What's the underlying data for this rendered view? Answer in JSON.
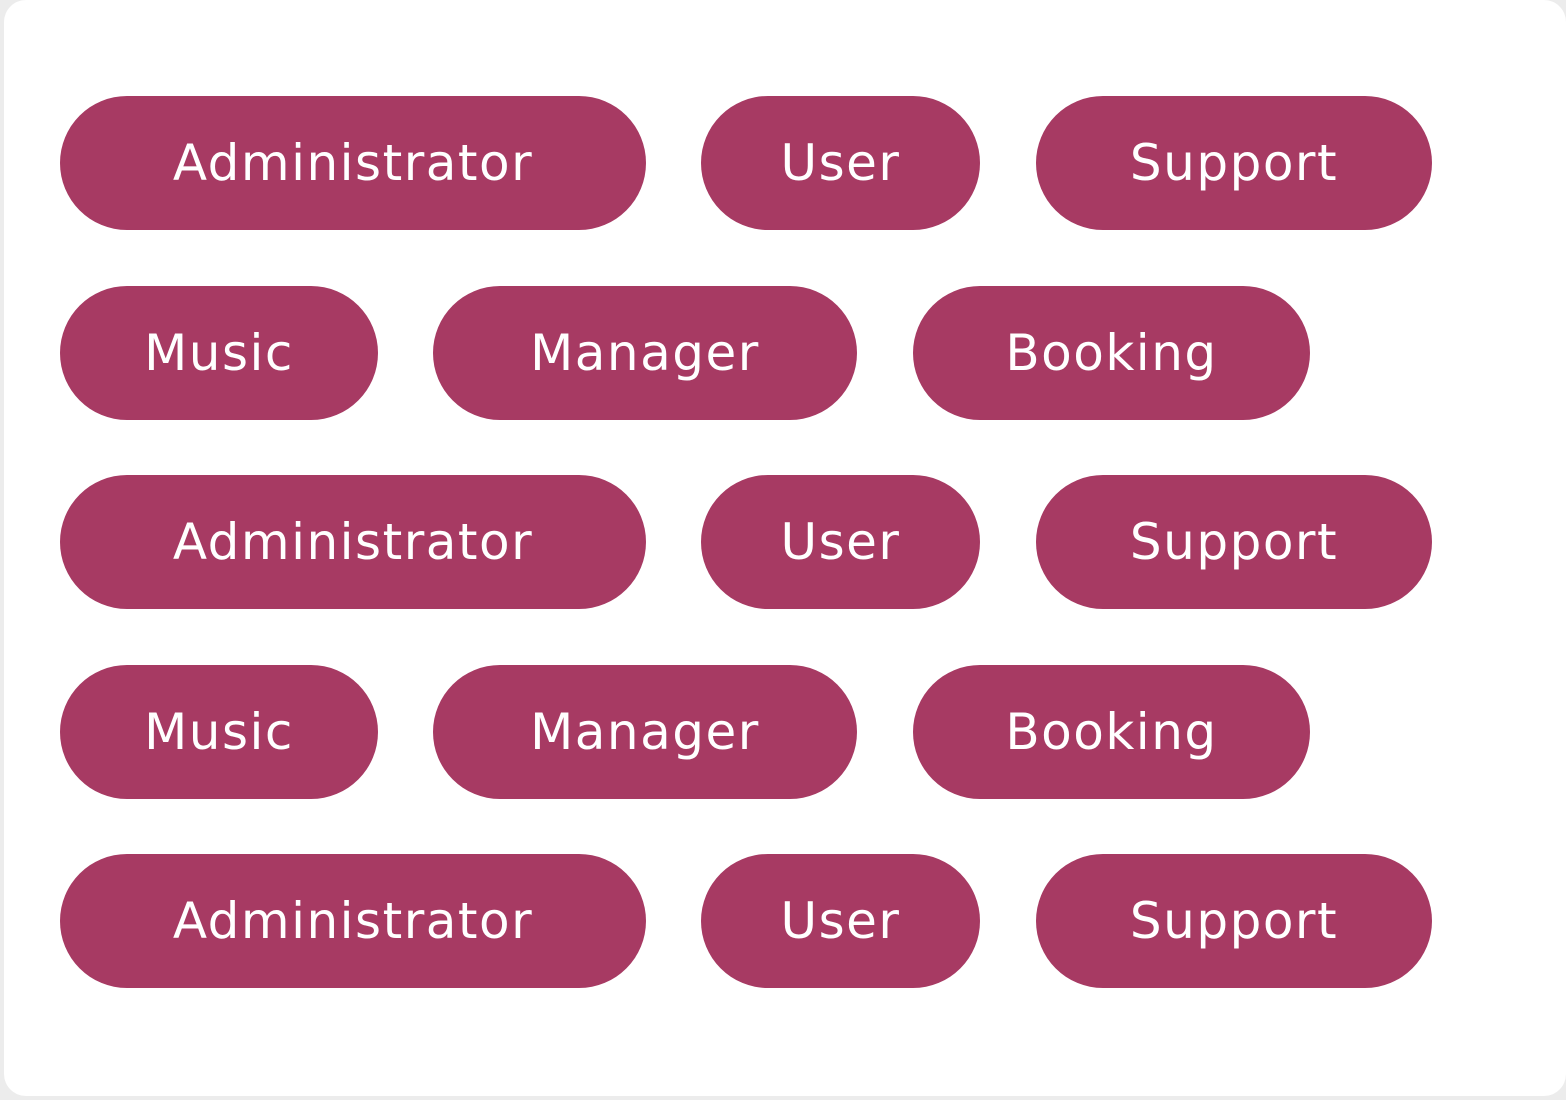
{
  "tag_color": "#a73a63",
  "tag_text_color": "#ffffff",
  "rows": [
    {
      "tags": [
        "Administrator",
        "User",
        "Support"
      ]
    },
    {
      "tags": [
        "Music",
        "Manager",
        "Booking"
      ]
    },
    {
      "tags": [
        "Administrator",
        "User",
        "Support"
      ]
    },
    {
      "tags": [
        "Music",
        "Manager",
        "Booking"
      ]
    },
    {
      "tags": [
        "Administrator",
        "User",
        "Support"
      ]
    }
  ]
}
